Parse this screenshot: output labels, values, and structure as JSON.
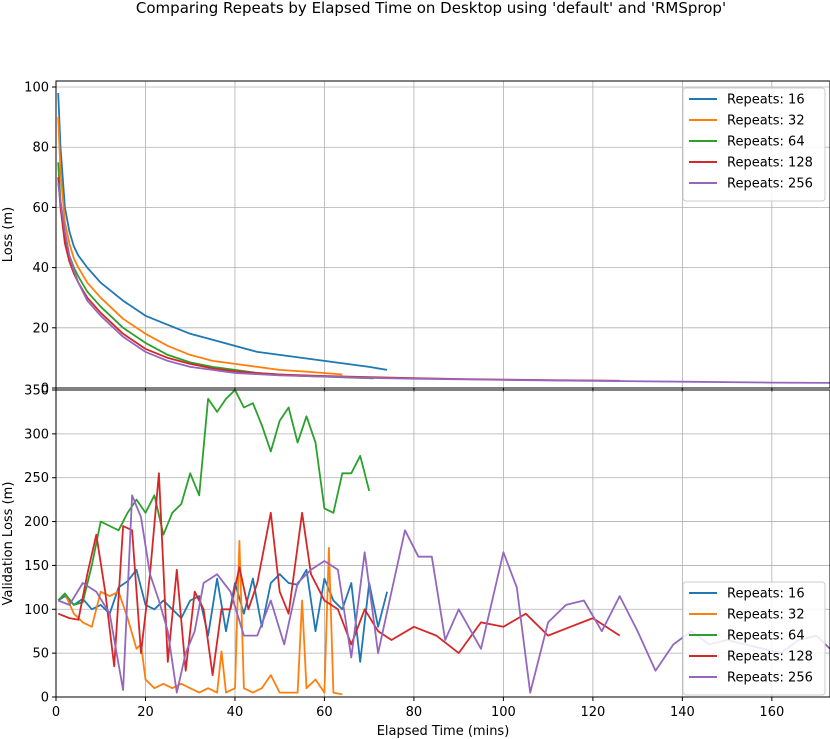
{
  "title": "Comparing Repeats by Elapsed Time on Desktop using 'default' and 'RMSprop'",
  "xlabel": "Elapsed Time (mins)",
  "chart_data": [
    {
      "type": "line",
      "ylabel": "Loss (m)",
      "xlim": [
        0,
        173
      ],
      "ylim": [
        0,
        102
      ],
      "xticks": [
        0,
        20,
        40,
        60,
        80,
        100,
        120,
        140,
        160
      ],
      "yticks": [
        0,
        20,
        40,
        60,
        80,
        100
      ],
      "grid": true,
      "legend_position": "top-right",
      "series": [
        {
          "name": "Repeats: 16",
          "color": "#1f77b4",
          "x": [
            0.5,
            1,
            2,
            3,
            4,
            5,
            7,
            10,
            15,
            20,
            25,
            30,
            35,
            40,
            45,
            50,
            55,
            60,
            65,
            70,
            74
          ],
          "y": [
            98,
            80,
            60,
            52,
            47,
            44,
            40,
            35,
            29,
            24,
            21,
            18,
            16,
            14,
            12,
            11,
            10,
            9,
            8,
            7,
            6
          ]
        },
        {
          "name": "Repeats: 32",
          "color": "#ff7f0e",
          "x": [
            0.5,
            1,
            2,
            3,
            4,
            5,
            7,
            10,
            15,
            20,
            25,
            30,
            35,
            40,
            45,
            50,
            55,
            60,
            64
          ],
          "y": [
            90,
            72,
            55,
            48,
            43,
            40,
            35,
            30,
            23,
            18,
            14,
            11,
            9,
            8,
            7,
            6,
            5.5,
            5,
            4.5
          ]
        },
        {
          "name": "Repeats: 64",
          "color": "#2ca02c",
          "x": [
            0.5,
            1,
            2,
            3,
            4,
            5,
            7,
            10,
            15,
            20,
            25,
            30,
            35,
            40,
            45,
            50,
            55,
            60,
            65,
            71
          ],
          "y": [
            75,
            62,
            50,
            44,
            40,
            37,
            32,
            27,
            20,
            15,
            11,
            8.5,
            7,
            6,
            5,
            4.5,
            4,
            3.8,
            3.5,
            3.2
          ]
        },
        {
          "name": "Repeats: 128",
          "color": "#d62728",
          "x": [
            0.5,
            1,
            2,
            3,
            4,
            5,
            7,
            10,
            15,
            20,
            25,
            30,
            35,
            40,
            50,
            60,
            70,
            80,
            90,
            100,
            110,
            120,
            126
          ],
          "y": [
            70,
            60,
            48,
            42,
            38,
            35,
            30,
            25,
            18,
            13,
            10,
            8,
            6.5,
            5.5,
            4.5,
            4,
            3.6,
            3.3,
            3,
            2.8,
            2.6,
            2.5,
            2.4
          ]
        },
        {
          "name": "Repeats: 256",
          "color": "#9467bd",
          "x": [
            0.5,
            1,
            2,
            3,
            4,
            5,
            7,
            10,
            15,
            20,
            25,
            30,
            35,
            40,
            50,
            60,
            70,
            80,
            100,
            120,
            140,
            160,
            173
          ],
          "y": [
            68,
            62,
            52,
            44,
            39,
            35,
            29,
            24,
            17,
            12,
            9,
            7,
            6,
            5,
            4.2,
            3.8,
            3.4,
            3.1,
            2.7,
            2.4,
            2.1,
            1.8,
            1.7
          ]
        }
      ]
    },
    {
      "type": "line",
      "ylabel": "Validation Loss (m)",
      "xlim": [
        0,
        173
      ],
      "ylim": [
        0,
        350
      ],
      "xticks": [
        0,
        20,
        40,
        60,
        80,
        100,
        120,
        140,
        160
      ],
      "yticks": [
        0,
        50,
        100,
        150,
        200,
        250,
        300,
        350
      ],
      "grid": true,
      "legend_position": "bottom-right",
      "series": [
        {
          "name": "Repeats: 16",
          "color": "#1f77b4",
          "x": [
            0.5,
            2,
            4,
            6,
            8,
            10,
            12,
            14,
            16,
            18,
            20,
            22,
            24,
            26,
            28,
            30,
            32,
            34,
            36,
            38,
            40,
            42,
            44,
            46,
            48,
            50,
            52,
            54,
            56,
            58,
            60,
            62,
            64,
            66,
            68,
            70,
            72,
            74
          ],
          "y": [
            110,
            115,
            105,
            112,
            100,
            105,
            95,
            125,
            132,
            145,
            105,
            100,
            110,
            100,
            90,
            110,
            115,
            70,
            135,
            75,
            130,
            95,
            135,
            80,
            130,
            140,
            130,
            128,
            145,
            75,
            135,
            110,
            100,
            130,
            40,
            130,
            80,
            120
          ]
        },
        {
          "name": "Repeats: 32",
          "color": "#ff7f0e",
          "x": [
            0.5,
            2,
            4,
            6,
            8,
            10,
            12,
            14,
            16,
            18,
            19,
            20,
            22,
            24,
            26,
            28,
            30,
            32,
            34,
            36,
            37,
            38,
            40,
            41,
            42,
            44,
            46,
            48,
            50,
            52,
            54,
            55,
            56,
            58,
            60,
            61,
            62,
            64
          ],
          "y": [
            110,
            118,
            95,
            85,
            80,
            120,
            115,
            120,
            90,
            55,
            60,
            20,
            10,
            15,
            10,
            15,
            10,
            5,
            10,
            5,
            52,
            5,
            10,
            178,
            10,
            5,
            10,
            25,
            5,
            5,
            5,
            110,
            10,
            20,
            5,
            170,
            5,
            3
          ]
        },
        {
          "name": "Repeats: 64",
          "color": "#2ca02c",
          "x": [
            0.5,
            2,
            4,
            6,
            8,
            10,
            12,
            14,
            16,
            18,
            20,
            22,
            24,
            26,
            28,
            30,
            32,
            34,
            36,
            38,
            40,
            42,
            44,
            46,
            48,
            50,
            52,
            54,
            56,
            58,
            60,
            62,
            64,
            66,
            68,
            70
          ],
          "y": [
            110,
            118,
            105,
            108,
            150,
            200,
            195,
            190,
            210,
            225,
            210,
            230,
            185,
            210,
            220,
            255,
            230,
            340,
            325,
            340,
            350,
            330,
            335,
            310,
            280,
            315,
            330,
            290,
            320,
            290,
            215,
            210,
            255,
            255,
            275,
            235
          ]
        },
        {
          "name": "Repeats: 128",
          "color": "#d62728",
          "x": [
            0.5,
            3,
            5,
            7,
            9,
            11,
            13,
            15,
            17,
            19,
            21,
            23,
            25,
            27,
            29,
            31,
            33,
            35,
            37,
            39,
            41,
            43,
            45,
            48,
            50,
            52,
            55,
            57,
            60,
            63,
            66,
            69,
            72,
            75,
            80,
            85,
            90,
            95,
            100,
            105,
            110,
            115,
            120,
            126
          ],
          "y": [
            95,
            90,
            88,
            140,
            185,
            120,
            35,
            195,
            190,
            50,
            140,
            255,
            40,
            145,
            30,
            120,
            100,
            25,
            100,
            100,
            148,
            100,
            130,
            210,
            120,
            95,
            210,
            140,
            110,
            100,
            60,
            100,
            75,
            65,
            80,
            70,
            50,
            85,
            80,
            95,
            70,
            80,
            90,
            70
          ]
        },
        {
          "name": "Repeats: 256",
          "color": "#9467bd",
          "x": [
            0.5,
            3,
            6,
            9,
            12,
            15,
            17,
            19,
            21,
            23,
            25,
            27,
            29,
            31,
            33,
            36,
            39,
            42,
            45,
            48,
            51,
            54,
            57,
            60,
            63,
            66,
            69,
            72,
            75,
            78,
            81,
            84,
            87,
            90,
            95,
            100,
            103,
            106,
            110,
            114,
            118,
            122,
            126,
            130,
            134,
            138,
            142,
            146,
            150,
            154,
            158,
            162,
            166,
            170,
            173
          ],
          "y": [
            110,
            105,
            130,
            120,
            95,
            8,
            230,
            205,
            140,
            110,
            75,
            5,
            50,
            75,
            130,
            140,
            120,
            70,
            70,
            110,
            60,
            130,
            145,
            155,
            145,
            45,
            165,
            50,
            120,
            190,
            160,
            160,
            65,
            100,
            55,
            165,
            125,
            5,
            85,
            105,
            110,
            75,
            115,
            75,
            30,
            60,
            75,
            60,
            65,
            60,
            55,
            50,
            65,
            70,
            55
          ]
        }
      ]
    }
  ]
}
